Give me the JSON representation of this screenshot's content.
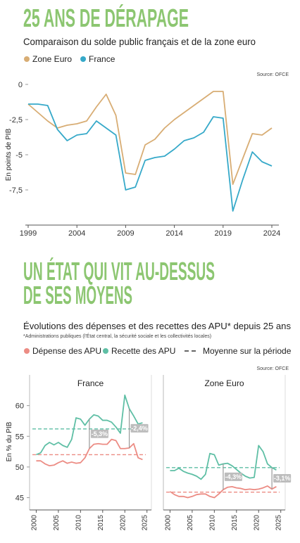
{
  "chart_data": [
    {
      "type": "line",
      "title": "25 ANS DE DÉRAPAGE",
      "subtitle": "Comparaison du solde public français et de la zone euro",
      "source": "Source: OFCE",
      "y_label": "En points de PIB",
      "x": [
        1999,
        2000,
        2001,
        2002,
        2003,
        2004,
        2005,
        2006,
        2007,
        2008,
        2009,
        2010,
        2011,
        2012,
        2013,
        2014,
        2015,
        2016,
        2017,
        2018,
        2019,
        2020,
        2021,
        2022,
        2023,
        2024
      ],
      "xlim": [
        1999,
        2024
      ],
      "xticks": [
        1999,
        2004,
        2009,
        2014,
        2019,
        2024
      ],
      "ylim": [
        -10,
        0
      ],
      "yticks": [
        0,
        {
          "value": -2.5,
          "label": "-2,5"
        },
        -5,
        {
          "value": -7.5,
          "label": "-7,5"
        }
      ],
      "series": [
        {
          "name": "Zone Euro",
          "color": "#d8ad74",
          "values": [
            -1.4,
            -2.0,
            -2.6,
            -3.1,
            -2.9,
            -2.8,
            -2.6,
            -1.6,
            -0.7,
            -2.2,
            -6.3,
            -6.4,
            -4.3,
            -3.9,
            -3.1,
            -2.5,
            -2.0,
            -1.5,
            -1.0,
            -0.5,
            -0.5,
            -7.1,
            -5.3,
            -3.5,
            -3.6,
            -3.1
          ]
        },
        {
          "name": "France",
          "color": "#36a9c9",
          "values": [
            -1.4,
            -1.4,
            -1.5,
            -3.2,
            -4.0,
            -3.6,
            -3.5,
            -2.6,
            -3.1,
            -3.6,
            -7.5,
            -7.3,
            -5.4,
            -5.2,
            -5.1,
            -4.6,
            -4.0,
            -3.8,
            -3.4,
            -2.3,
            -2.4,
            -9.0,
            -6.8,
            -4.8,
            -5.5,
            -5.8
          ]
        }
      ]
    },
    {
      "type": "line",
      "title_lines": [
        "UN ÉTAT QUI VIT AU-DESSUS",
        "DE SES MOYENS"
      ],
      "subtitle": "Évolutions des dépenses et des recettes des APU* depuis 25 ans",
      "note": "*Administrations publiques (l'État central, la sécurité sociale et les collectivités locales)",
      "source": "Source: OFCE",
      "y_label": "En % du PIB",
      "mean_label": "Moyenne sur la période",
      "panel_title": "France",
      "x": [
        2000,
        2001,
        2002,
        2003,
        2004,
        2005,
        2006,
        2007,
        2008,
        2009,
        2010,
        2011,
        2012,
        2013,
        2014,
        2015,
        2016,
        2017,
        2018,
        2019,
        2020,
        2021,
        2022,
        2023,
        2024
      ],
      "xlim": [
        1998.5,
        2026
      ],
      "xticks": [
        2000,
        2005,
        2010,
        2015,
        2020,
        2025
      ],
      "ylim": [
        43,
        65
      ],
      "yticks": [
        45,
        50,
        55,
        60
      ],
      "series": [
        {
          "name": "Dépense des APU",
          "color": "#ec8c84",
          "mean": 52.0,
          "values": [
            51.0,
            51.0,
            50.5,
            50.2,
            50.3,
            50.7,
            51.0,
            50.6,
            50.8,
            50.6,
            50.7,
            51.5,
            53.0,
            53.7,
            53.8,
            53.7,
            53.7,
            54.5,
            54.3,
            53.0,
            53.0,
            53.1,
            53.8,
            51.5,
            51.2
          ]
        },
        {
          "name": "Recette des APU",
          "color": "#5fbfa5",
          "mean": 56.2,
          "values": [
            52.0,
            52.3,
            53.5,
            54.0,
            53.6,
            54.0,
            53.5,
            53.2,
            54.5,
            58.0,
            57.8,
            56.8,
            57.8,
            58.5,
            58.3,
            57.6,
            57.6,
            57.3,
            56.5,
            55.5,
            61.7,
            59.5,
            58.3,
            57.0,
            57.2
          ]
        }
      ],
      "annotations": [
        {
          "x": 2012,
          "text": "-5,3%"
        },
        {
          "x": 2021,
          "text": "-2,4%"
        }
      ]
    },
    {
      "type": "line",
      "panel_title": "Zone Euro",
      "x": [
        2000,
        2001,
        2002,
        2003,
        2004,
        2005,
        2006,
        2007,
        2008,
        2009,
        2010,
        2011,
        2012,
        2013,
        2014,
        2015,
        2016,
        2017,
        2018,
        2019,
        2020,
        2021,
        2022,
        2023,
        2024
      ],
      "xlim": [
        1998.5,
        2026
      ],
      "xticks": [
        2000,
        2005,
        2010,
        2015,
        2020,
        2025
      ],
      "ylim": [
        43,
        65
      ],
      "series": [
        {
          "name": "Dépense des APU",
          "color": "#ec8c84",
          "mean": 45.9,
          "values": [
            46.0,
            45.5,
            45.2,
            45.2,
            45.0,
            45.2,
            45.5,
            45.6,
            45.6,
            45.2,
            45.0,
            45.6,
            46.3,
            46.7,
            46.8,
            46.6,
            46.5,
            46.3,
            46.4,
            46.3,
            46.4,
            46.6,
            46.9,
            46.4,
            46.8
          ]
        },
        {
          "name": "Recette des APU",
          "color": "#5fbfa5",
          "mean": 49.9,
          "values": [
            49.4,
            49.4,
            49.8,
            49.3,
            49.0,
            48.8,
            48.5,
            48.0,
            48.8,
            52.2,
            52.0,
            50.3,
            50.5,
            50.6,
            50.2,
            49.6,
            49.0,
            48.5,
            48.2,
            48.3,
            53.5,
            52.5,
            50.5,
            49.9,
            49.5
          ]
        }
      ],
      "annotations": [
        {
          "x": 2012,
          "text": "-4,3%"
        },
        {
          "x": 2023,
          "text": "-3,1%"
        }
      ]
    }
  ]
}
